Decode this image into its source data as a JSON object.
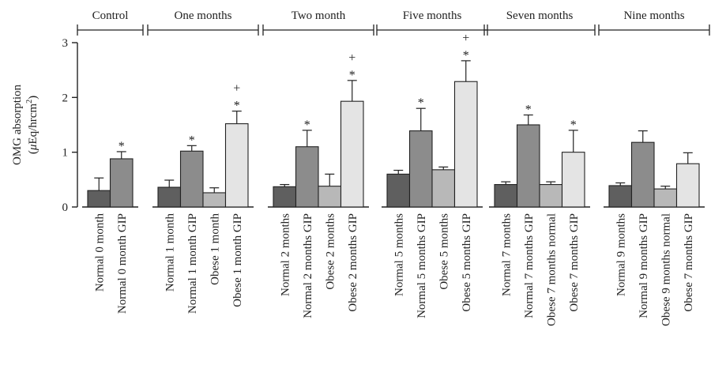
{
  "chart_data": {
    "type": "bar",
    "ylabel_line1": "OMG absorption",
    "ylabel_line2_prefix": "(",
    "ylabel_mu": "μ",
    "ylabel_unit": "Eq/hrcm",
    "ylabel_sup": "2",
    "ylabel_close": ")",
    "ylim": [
      0,
      3
    ],
    "yticks": [
      "0",
      "1",
      "2",
      "3"
    ],
    "groups": [
      {
        "label": "Control",
        "bars": [
          {
            "category": "Normal 0 month",
            "value": 0.3,
            "err": 0.23,
            "color": "#5f5f5f",
            "marks": ""
          },
          {
            "category": "Normal 0 month GIP",
            "value": 0.88,
            "err": 0.13,
            "color": "#8c8c8c",
            "marks": "*"
          }
        ]
      },
      {
        "label": "One months",
        "bars": [
          {
            "category": "Normal 1 month",
            "value": 0.36,
            "err": 0.13,
            "color": "#5f5f5f",
            "marks": ""
          },
          {
            "category": "Normal 1 month GIP",
            "value": 1.02,
            "err": 0.1,
            "color": "#8c8c8c",
            "marks": "*"
          },
          {
            "category": "Obese 1 month",
            "value": 0.26,
            "err": 0.09,
            "color": "#b8b8b8",
            "marks": ""
          },
          {
            "category": "Obese 1 month GIP",
            "value": 1.52,
            "err": 0.23,
            "color": "#e4e4e4",
            "marks": "*+"
          }
        ]
      },
      {
        "label": "Two month",
        "bars": [
          {
            "category": "Normal 2 months",
            "value": 0.37,
            "err": 0.04,
            "color": "#5f5f5f",
            "marks": ""
          },
          {
            "category": "Normal 2 months GIP",
            "value": 1.1,
            "err": 0.3,
            "color": "#8c8c8c",
            "marks": "*"
          },
          {
            "category": "Obese 2 months",
            "value": 0.38,
            "err": 0.22,
            "color": "#b8b8b8",
            "marks": ""
          },
          {
            "category": "Obese 2 months GIP",
            "value": 1.93,
            "err": 0.38,
            "color": "#e4e4e4",
            "marks": "*+"
          }
        ]
      },
      {
        "label": "Five months",
        "bars": [
          {
            "category": "Normal 5 months",
            "value": 0.6,
            "err": 0.07,
            "color": "#5f5f5f",
            "marks": ""
          },
          {
            "category": "Normal 5 months GIP",
            "value": 1.39,
            "err": 0.41,
            "color": "#8c8c8c",
            "marks": "*"
          },
          {
            "category": "Obese 5 months",
            "value": 0.68,
            "err": 0.05,
            "color": "#b8b8b8",
            "marks": ""
          },
          {
            "category": "Obese 5 months GIP",
            "value": 2.29,
            "err": 0.38,
            "color": "#e4e4e4",
            "marks": "*+"
          }
        ]
      },
      {
        "label": "Seven months",
        "bars": [
          {
            "category": "Normal 7 months",
            "value": 0.41,
            "err": 0.05,
            "color": "#5f5f5f",
            "marks": ""
          },
          {
            "category": "Normal 7 months GIP",
            "value": 1.5,
            "err": 0.18,
            "color": "#8c8c8c",
            "marks": "*"
          },
          {
            "category": "Obese 7 months normal",
            "value": 0.41,
            "err": 0.05,
            "color": "#b8b8b8",
            "marks": ""
          },
          {
            "category": "Obese 7 months GIP",
            "value": 1.0,
            "err": 0.4,
            "color": "#e4e4e4",
            "marks": "*"
          }
        ]
      },
      {
        "label": "Nine months",
        "bars": [
          {
            "category": "Normal 9 months",
            "value": 0.39,
            "err": 0.05,
            "color": "#5f5f5f",
            "marks": ""
          },
          {
            "category": "Normal 9 months GIP",
            "value": 1.18,
            "err": 0.21,
            "color": "#8c8c8c",
            "marks": ""
          },
          {
            "category": "Obese 9 months normal",
            "value": 0.33,
            "err": 0.05,
            "color": "#b8b8b8",
            "marks": ""
          },
          {
            "category": "Obese 7 months GIP",
            "value": 0.79,
            "err": 0.2,
            "color": "#e4e4e4",
            "marks": ""
          }
        ]
      }
    ]
  }
}
